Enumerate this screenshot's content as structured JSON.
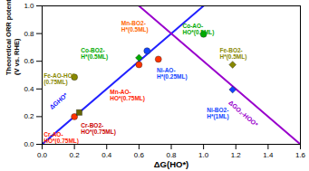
{
  "chart_data": {
    "type": "scatter",
    "xlabel": "ΔG(HO*)",
    "ylabel": "Theoretical ORR potential\n(V vs. RHE)",
    "xlim": [
      0,
      1.6
    ],
    "ylim": [
      0,
      1.0
    ],
    "xticks": [
      {
        "value": 0,
        "label": "0.0"
      },
      0.2,
      0.4,
      0.6,
      0.8,
      {
        "value": 1.0,
        "label": "1.0"
      },
      1.2,
      1.4,
      1.6
    ],
    "yticks": [
      {
        "value": 0,
        "label": "0.0"
      },
      0.2,
      0.4,
      0.6,
      0.8,
      {
        "value": 1.0,
        "label": "1.0"
      }
    ],
    "series": [
      {
        "name": "ΔGHO*",
        "type": "line",
        "color": "#2222ff",
        "x": [
          0,
          1.0
        ],
        "values": [
          0,
          1.0
        ]
      },
      {
        "name": "ΔGO₂-HOO*",
        "type": "line",
        "color": "#9900cc",
        "x": [
          0.6,
          1.6
        ],
        "values": [
          1.0,
          0
        ]
      },
      {
        "name": "Cr-AO-\nHO*(0.75ML)",
        "type": "scatter",
        "color": "#ff3300",
        "marker": "circle",
        "label_color": "#ff2200",
        "x": [
          0.2
        ],
        "values": [
          0.2
        ]
      },
      {
        "name": "Cr-BO2-\nHO*(0.75ML)",
        "type": "scatter",
        "color": "#666600",
        "marker": "square",
        "label_color": "#cc0000",
        "x": [
          0.23
        ],
        "values": [
          0.23
        ]
      },
      {
        "name": "Mn-AO-\nHO*(0.75ML)",
        "type": "scatter",
        "color": "#ff3300",
        "marker": "circle",
        "label_color": "#ff2200",
        "x": [
          0.6
        ],
        "values": [
          0.575
        ]
      },
      {
        "name": "Mn-BO2-\nH*(0.5ML)",
        "type": "scatter",
        "color": "#1144ff",
        "marker": "circle",
        "label_color": "#ff6600",
        "x": [
          0.65
        ],
        "values": [
          0.675
        ]
      },
      {
        "name": "Co-BO2-\nH*(0.5ML)",
        "type": "scatter",
        "color": "#00aa00",
        "marker": "diamond",
        "label_color": "#00aa00",
        "x": [
          0.6
        ],
        "values": [
          0.625
        ]
      },
      {
        "name": "Ni-AO-\nH*(0.25ML)",
        "type": "scatter",
        "color": "#ff3300",
        "marker": "circle",
        "label_color": "#1144ff",
        "x": [
          0.72
        ],
        "values": [
          0.615
        ]
      },
      {
        "name": "Co-AO-\nHO*(0.5ML)",
        "type": "scatter",
        "color": "#00aa00",
        "marker": "circle",
        "label_color": "#00aa00",
        "x": [
          1.0
        ],
        "values": [
          0.795
        ]
      },
      {
        "name": "Fe-BO2-\nH*(0.5ML)",
        "type": "scatter",
        "color": "#888800",
        "marker": "diamond",
        "label_color": "#888800",
        "x": [
          1.18
        ],
        "values": [
          0.575
        ]
      },
      {
        "name": "Ni-BO2-\nH*(1ML)",
        "type": "scatter",
        "color": "#1144ff",
        "marker": "diamond",
        "label_color": "#1144ff",
        "x": [
          1.18
        ],
        "values": [
          0.395
        ]
      },
      {
        "name": "Fe-AO-HO*\n(0.75ML)",
        "type": "scatter",
        "color": "#888800",
        "marker": "circle",
        "label_color": "#888800",
        "x": [
          0.2
        ],
        "values": [
          0.485
        ]
      }
    ]
  }
}
